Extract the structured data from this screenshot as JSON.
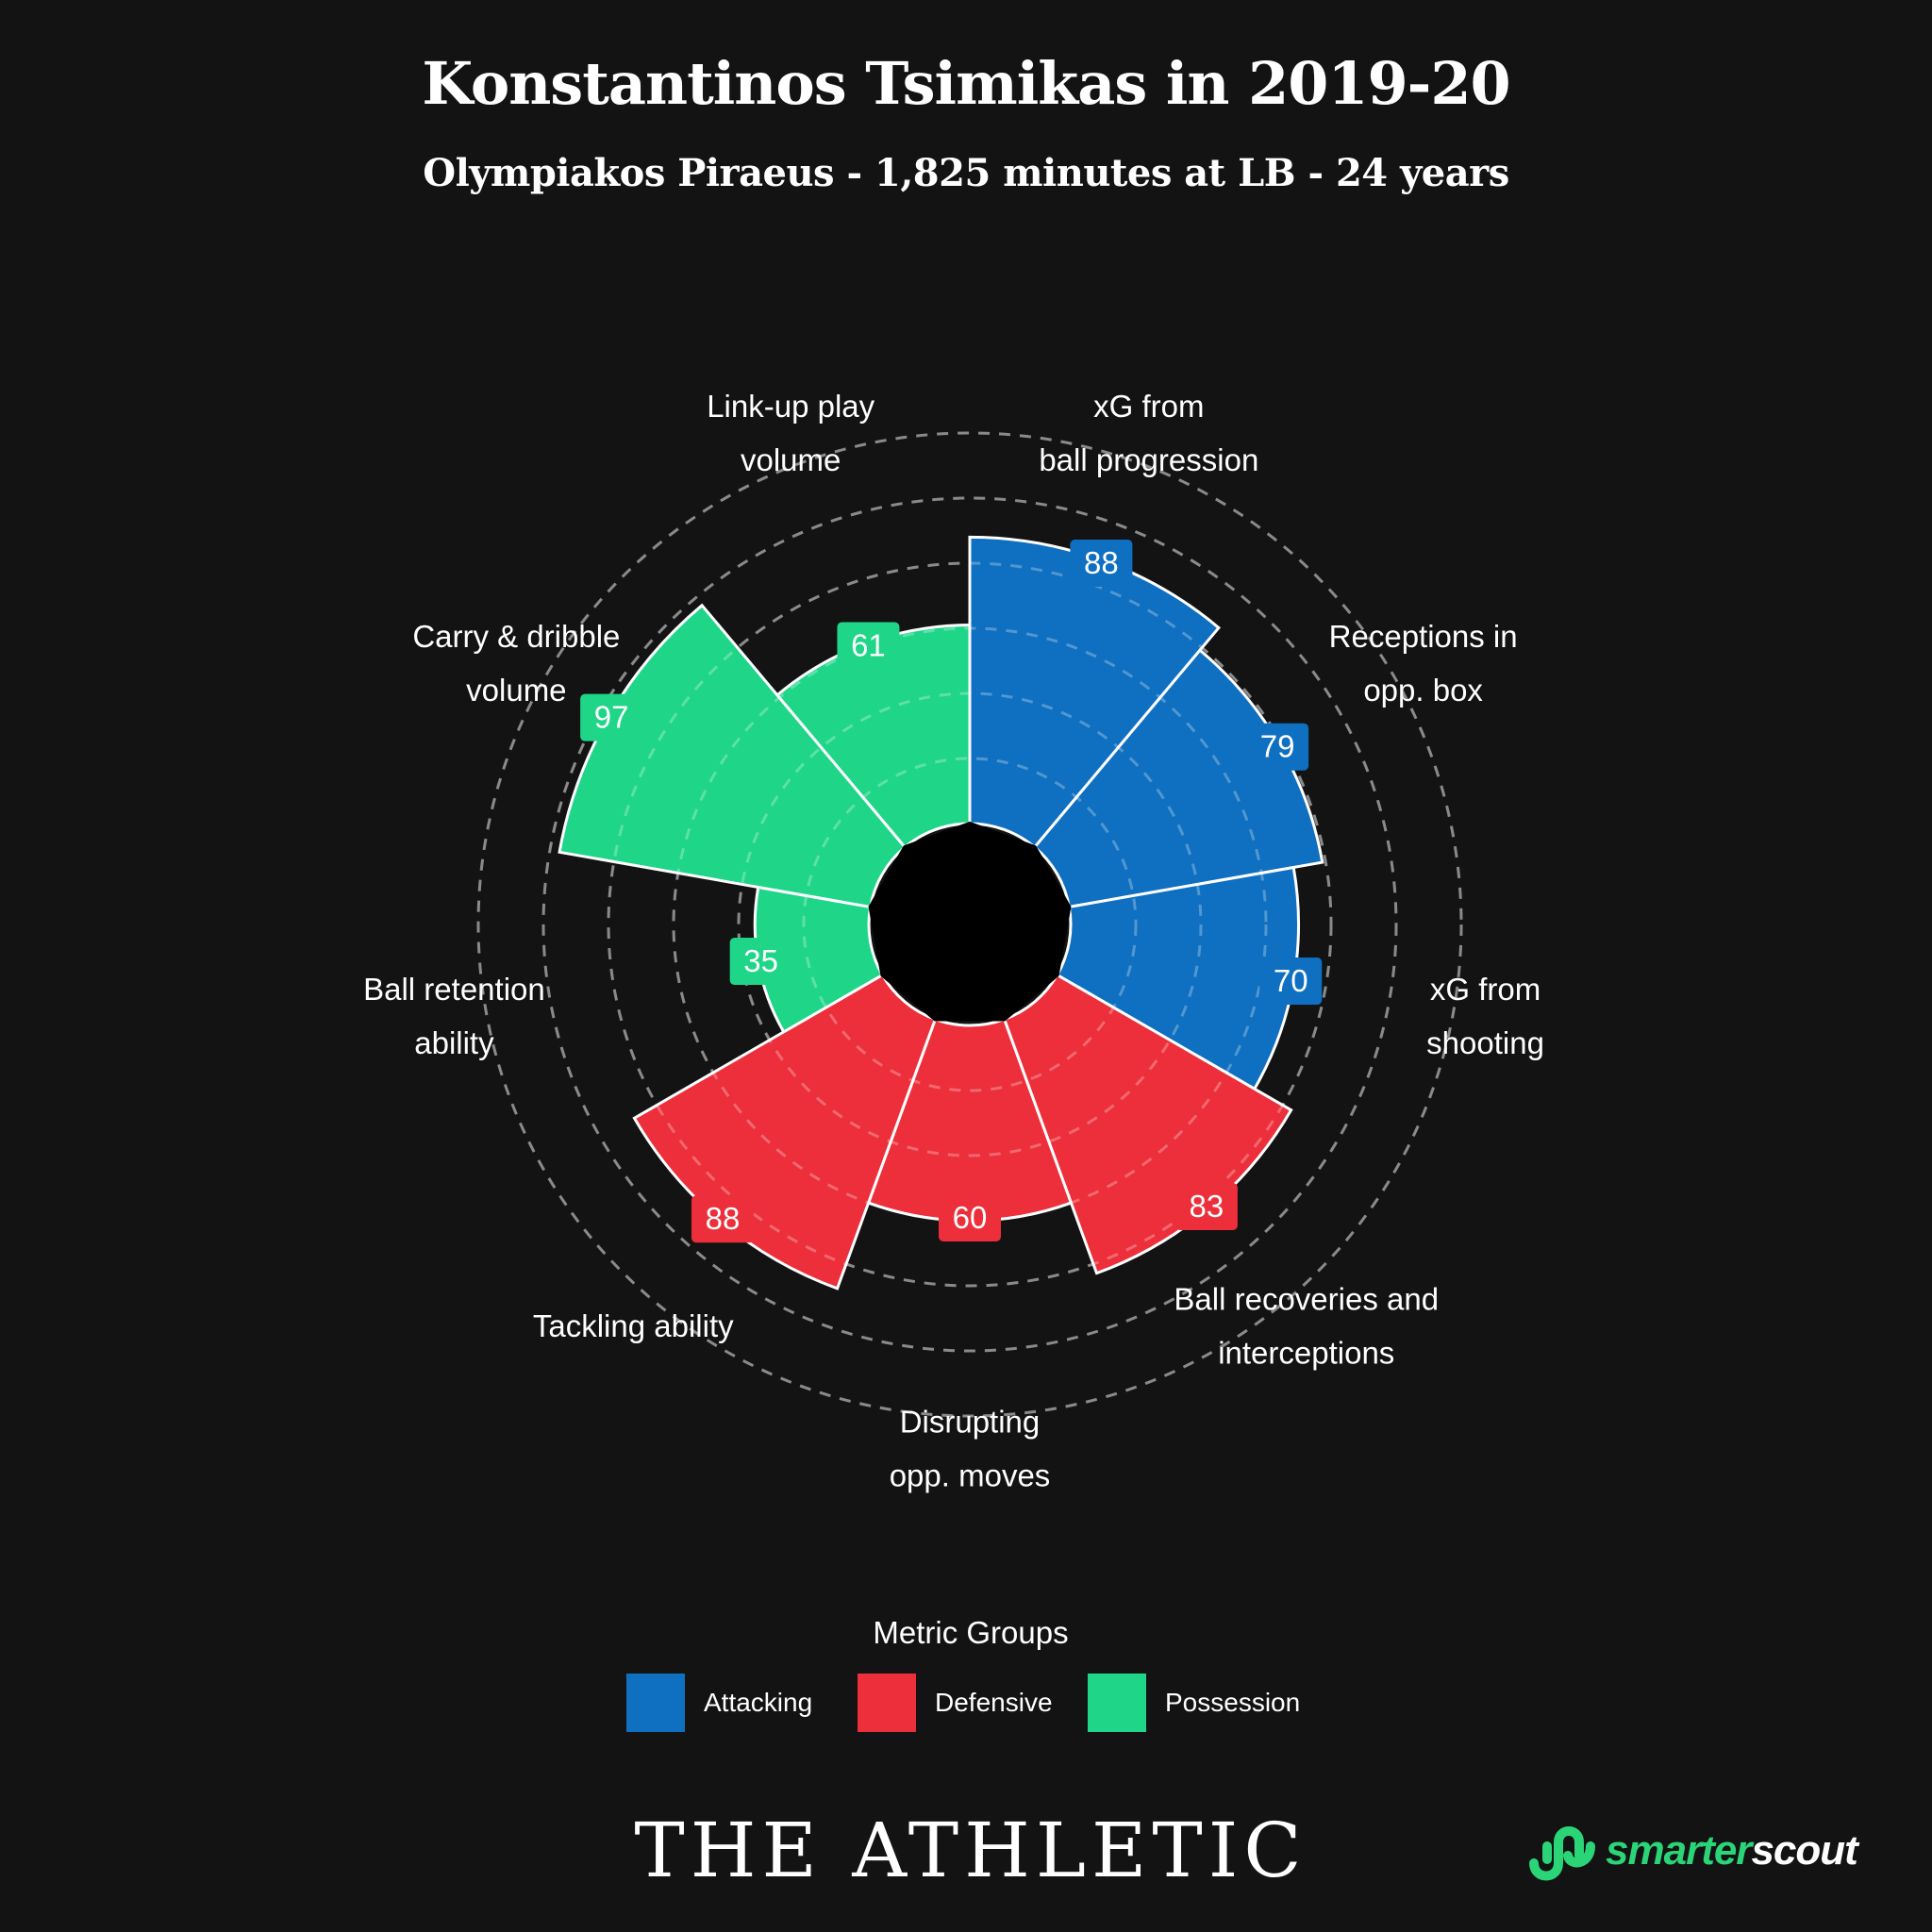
{
  "title": "Konstantinos Tsimikas in 2019-20",
  "subtitle": "Olympiakos Piraeus - 1,825 minutes at LB - 24 years",
  "chart_data": {
    "type": "polar-area",
    "max_value": 100,
    "grid_rings": [
      20,
      40,
      60,
      80,
      100,
      120
    ],
    "metrics": [
      {
        "label": [
          "xG from",
          "ball progression"
        ],
        "value": 88,
        "group": "Attacking"
      },
      {
        "label": [
          "Receptions in",
          "opp. box"
        ],
        "value": 79,
        "group": "Attacking"
      },
      {
        "label": [
          "xG from",
          "shooting"
        ],
        "value": 70,
        "group": "Attacking"
      },
      {
        "label": [
          "Ball recoveries and",
          "interceptions"
        ],
        "value": 83,
        "group": "Defensive"
      },
      {
        "label": [
          "Disrupting",
          "opp. moves"
        ],
        "value": 60,
        "group": "Defensive"
      },
      {
        "label": [
          "Tackling ability"
        ],
        "value": 88,
        "group": "Defensive"
      },
      {
        "label": [
          "Ball retention",
          "ability"
        ],
        "value": 35,
        "group": "Possession"
      },
      {
        "label": [
          "Carry & dribble",
          "volume"
        ],
        "value": 97,
        "group": "Possession"
      },
      {
        "label": [
          "Link-up play",
          "volume"
        ],
        "value": 61,
        "group": "Possession"
      }
    ],
    "groups": [
      {
        "name": "Attacking",
        "color": "#0f6fc0"
      },
      {
        "name": "Defensive",
        "color": "#ec2f3a"
      },
      {
        "name": "Possession",
        "color": "#1fd588"
      }
    ]
  },
  "legend": {
    "title": "Metric Groups",
    "items": [
      {
        "label": "Attacking",
        "color": "#0f6fc0"
      },
      {
        "label": "Defensive",
        "color": "#ec2f3a"
      },
      {
        "label": "Possession",
        "color": "#1fd588"
      }
    ]
  },
  "footer": {
    "publisher": "THE ATHLETIC",
    "brand_part1": "smarter",
    "brand_part2": "scout",
    "brand_color": "#2bd477"
  }
}
